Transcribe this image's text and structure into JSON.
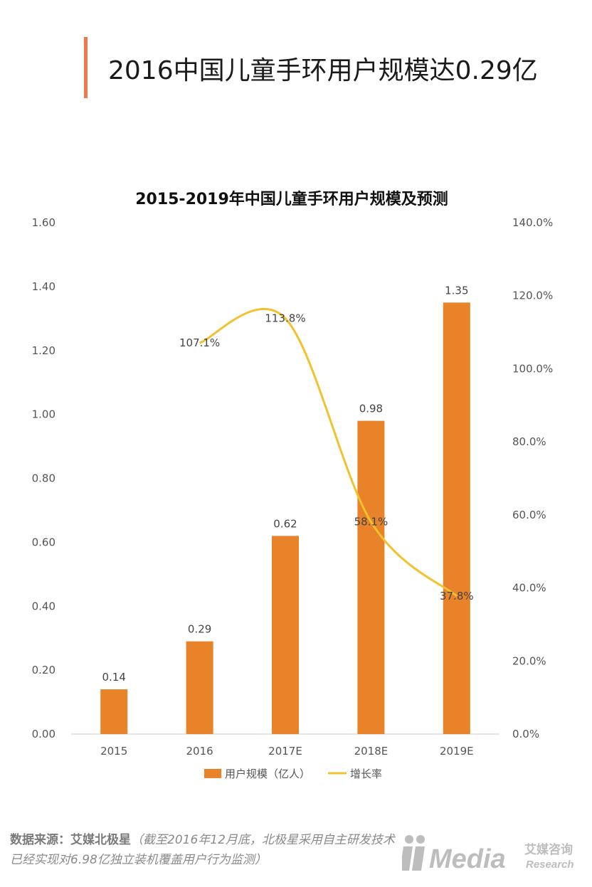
{
  "header": {
    "title": "2016中国儿童手环用户规模达0.29亿"
  },
  "colors": {
    "accent": "#F0784A",
    "bar": "#E8832A",
    "line": "#F2C12E",
    "axis": "#CCCCCC"
  },
  "chart_data": {
    "type": "bar",
    "title": "2015-2019年中国儿童手环用户规模及预测",
    "categories": [
      "2015",
      "2016",
      "2017E",
      "2018E",
      "2019E"
    ],
    "series": [
      {
        "name": "用户规模（亿人）",
        "type": "bar",
        "axis": "left",
        "values": [
          0.14,
          0.29,
          0.62,
          0.98,
          1.35
        ],
        "labels": [
          "0.14",
          "0.29",
          "0.62",
          "0.98",
          "1.35"
        ]
      },
      {
        "name": "增长率",
        "type": "line",
        "axis": "right",
        "values": [
          null,
          107.1,
          113.8,
          58.1,
          37.8
        ],
        "labels": [
          "",
          "107.1%",
          "113.8%",
          "58.1%",
          "37.8%"
        ]
      }
    ],
    "y_left": {
      "min": 0,
      "max": 1.6,
      "ticks": [
        "0.00",
        "0.20",
        "0.40",
        "0.60",
        "0.80",
        "1.00",
        "1.20",
        "1.40",
        "1.60"
      ]
    },
    "y_right": {
      "min": 0,
      "max": 140,
      "ticks": [
        "0.0%",
        "20.0%",
        "40.0%",
        "60.0%",
        "80.0%",
        "100.0%",
        "120.0%",
        "140.0%"
      ]
    },
    "legend": {
      "position": "bottom",
      "bar_label": "用户规模（亿人）",
      "line_label": "增长率"
    },
    "grid": false
  },
  "footer": {
    "source_label": "数据来源：艾媒北极星",
    "source_note": "（截至2016年12月底，北极星采用自主研发技术已经实现对6.98亿独立装机覆盖用户行为监测）"
  },
  "logo": {
    "brand": "Media",
    "cn": "艾媒咨询",
    "en": "Research",
    "icon": "imedia-logo-icon"
  }
}
